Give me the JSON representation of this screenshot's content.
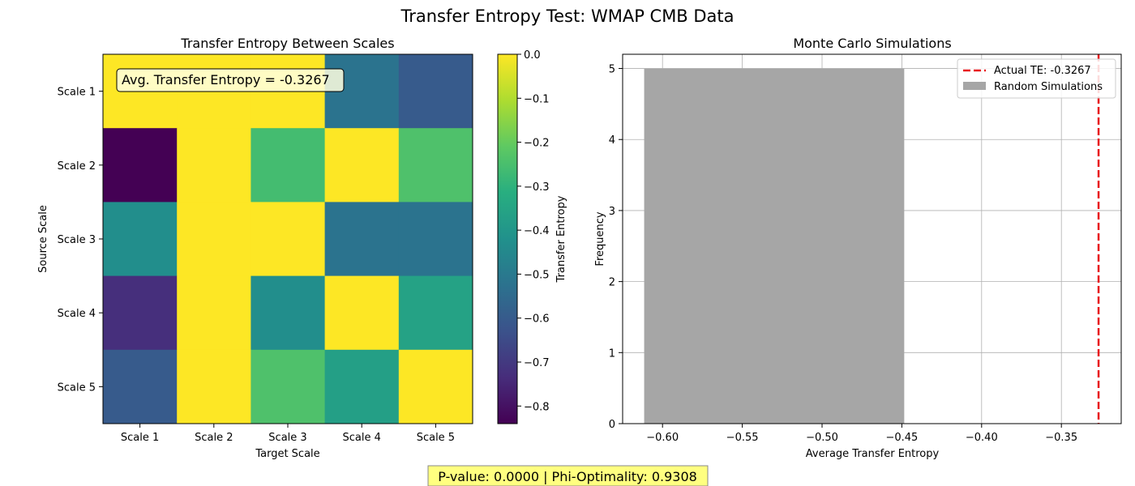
{
  "suptitle": "Transfer Entropy Test: WMAP CMB Data",
  "footer_text": "P-value: 0.0000 | Phi-Optimality: 0.9308",
  "colors": {
    "footer_bg": "#ffff80",
    "actual_line": "#e8141a",
    "hist_bar": "#a6a6a6",
    "grid": "#b0b0b0",
    "annotation_bg": "#ffffe0"
  },
  "chart_data": [
    {
      "type": "heatmap",
      "title": "Transfer Entropy Between Scales",
      "xlabel": "Target Scale",
      "ylabel": "Source Scale",
      "x_categories": [
        "Scale 1",
        "Scale 2",
        "Scale 3",
        "Scale 4",
        "Scale 5"
      ],
      "y_categories": [
        "Scale 1",
        "Scale 2",
        "Scale 3",
        "Scale 4",
        "Scale 5"
      ],
      "values": [
        [
          0.0,
          0.0,
          0.0,
          -0.52,
          -0.6
        ],
        [
          -0.84,
          0.0,
          -0.26,
          0.0,
          -0.24
        ],
        [
          -0.43,
          0.0,
          0.0,
          -0.52,
          -0.52
        ],
        [
          -0.73,
          0.0,
          -0.43,
          0.0,
          -0.36
        ],
        [
          -0.6,
          0.0,
          -0.24,
          -0.37,
          0.0
        ]
      ],
      "colormap": "viridis",
      "vmin": -0.84,
      "vmax": 0.0,
      "colorbar_label": "Transfer Entropy",
      "colorbar_ticks": [
        0.0,
        -0.1,
        -0.2,
        -0.3,
        -0.4,
        -0.5,
        -0.6,
        -0.7,
        -0.8
      ],
      "annotation": "Avg. Transfer Entropy = -0.3267"
    },
    {
      "type": "bar",
      "subtype": "histogram",
      "title": "Monte Carlo Simulations",
      "xlabel": "Average Transfer Entropy",
      "ylabel": "Frequency",
      "xlim": [
        -0.625,
        -0.3125
      ],
      "ylim": [
        0,
        5.2
      ],
      "x_ticks": [
        -0.6,
        -0.55,
        -0.5,
        -0.45,
        -0.4,
        -0.35
      ],
      "y_ticks": [
        0,
        1,
        2,
        3,
        4,
        5
      ],
      "grid": true,
      "bins": [
        {
          "x0": -0.6115,
          "x1": -0.4485,
          "count": 5
        }
      ],
      "actual_value": -0.3267,
      "legend_position": "top-right",
      "legend": [
        {
          "label": "Actual TE: -0.3267",
          "kind": "dashed-line"
        },
        {
          "label": "Random Simulations",
          "kind": "patch"
        }
      ]
    }
  ]
}
